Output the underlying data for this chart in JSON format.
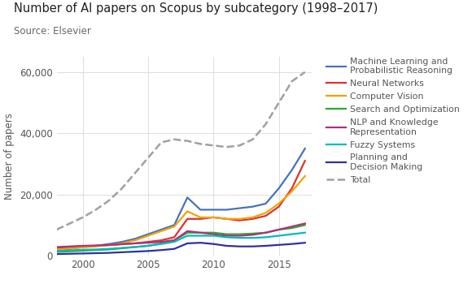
{
  "title": "Number of AI papers on Scopus by subcategory (1998–2017)",
  "source": "Source: Elsevier",
  "ylabel": "Number of papers",
  "years": [
    1998,
    1999,
    2000,
    2001,
    2002,
    2003,
    2004,
    2005,
    2006,
    2007,
    2008,
    2009,
    2010,
    2011,
    2012,
    2013,
    2014,
    2015,
    2016,
    2017
  ],
  "series": {
    "Machine Learning and\nProbabilistic Reasoning": {
      "color": "#4472C4",
      "linestyle": "-",
      "linewidth": 1.6,
      "data": [
        1800,
        2200,
        2800,
        3200,
        3800,
        4500,
        5500,
        7000,
        8500,
        10000,
        19000,
        15000,
        15000,
        15000,
        15500,
        16000,
        17000,
        22000,
        28000,
        35000
      ]
    },
    "Neural Networks": {
      "color": "#E03030",
      "linestyle": "-",
      "linewidth": 1.6,
      "data": [
        2500,
        2800,
        3000,
        3200,
        3400,
        3700,
        4000,
        4500,
        5000,
        6000,
        12000,
        12000,
        12500,
        12000,
        11500,
        12000,
        13000,
        16000,
        22000,
        31000
      ]
    },
    "Computer Vision": {
      "color": "#F0A500",
      "linestyle": "-",
      "linewidth": 1.6,
      "data": [
        2000,
        2300,
        2700,
        3000,
        3500,
        4000,
        5000,
        6500,
        8000,
        9500,
        14500,
        12500,
        12500,
        12000,
        12000,
        12500,
        14000,
        17000,
        21000,
        26000
      ]
    },
    "Search and Optimization": {
      "color": "#2EAA2E",
      "linestyle": "-",
      "linewidth": 1.6,
      "data": [
        1200,
        1400,
        1600,
        1800,
        2000,
        2400,
        2800,
        3200,
        4000,
        5000,
        7500,
        7500,
        7500,
        7000,
        7000,
        7200,
        7500,
        8500,
        9000,
        10000
      ]
    },
    "NLP and Knowledge\nRepresentation": {
      "color": "#B03080",
      "linestyle": "-",
      "linewidth": 1.6,
      "data": [
        2800,
        3000,
        3200,
        3300,
        3500,
        3800,
        4000,
        4200,
        4500,
        5000,
        8000,
        7500,
        7000,
        6500,
        6500,
        6800,
        7500,
        8500,
        9500,
        10500
      ]
    },
    "Fuzzy Systems": {
      "color": "#00BBBB",
      "linestyle": "-",
      "linewidth": 1.6,
      "data": [
        1500,
        1700,
        1900,
        2000,
        2200,
        2500,
        2800,
        3200,
        3800,
        4500,
        6500,
        6500,
        6500,
        6000,
        5800,
        5800,
        6000,
        6500,
        7000,
        7500
      ]
    },
    "Planning and\nDecision Making": {
      "color": "#3030A0",
      "linestyle": "-",
      "linewidth": 1.6,
      "data": [
        500,
        600,
        700,
        800,
        900,
        1100,
        1300,
        1500,
        1800,
        2200,
        4000,
        4200,
        3800,
        3200,
        3000,
        3000,
        3200,
        3500,
        3800,
        4200
      ]
    },
    "Total": {
      "color": "#A0A0A0",
      "linestyle": "--",
      "linewidth": 1.8,
      "data": [
        8500,
        10500,
        12500,
        15000,
        18000,
        22000,
        27000,
        32000,
        37000,
        38000,
        37500,
        36500,
        36000,
        35500,
        36000,
        38000,
        43000,
        50000,
        57000,
        60000
      ]
    }
  },
  "ylim": [
    0,
    65000
  ],
  "yticks": [
    0,
    20000,
    40000,
    60000
  ],
  "ytick_labels": [
    "0",
    "20,000",
    "40,000",
    "60,000"
  ],
  "xticks": [
    2000,
    2005,
    2010,
    2015
  ],
  "background_color": "#FFFFFF",
  "grid_color": "#DDDDDD",
  "title_fontsize": 10.5,
  "source_fontsize": 8.5,
  "axis_label_fontsize": 8.5,
  "tick_fontsize": 8.5,
  "legend_fontsize": 7.8
}
